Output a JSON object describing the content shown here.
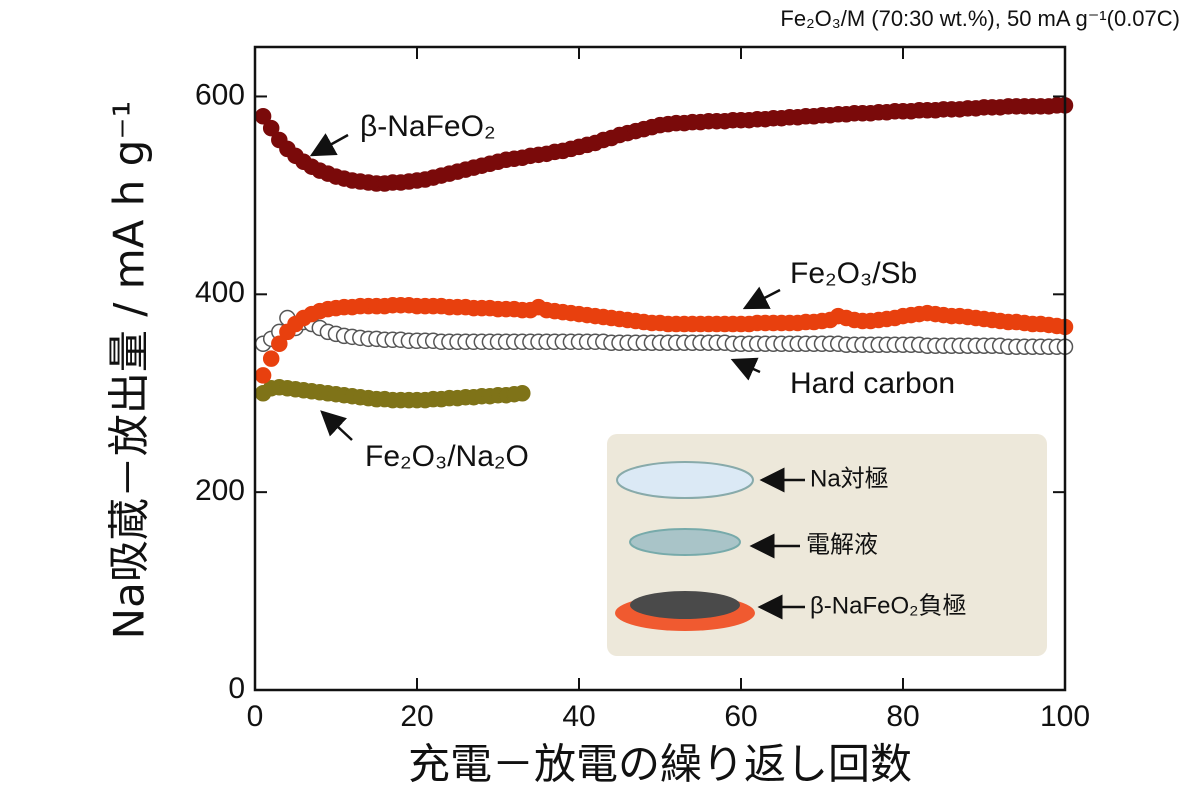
{
  "chart_data": {
    "type": "scatter",
    "note": "Fe₂O₃/M (70:30 wt.%), 50 mA g⁻¹(0.07C)",
    "x_label": "充電－放電の繰り返し回数",
    "y_label": "Na吸蔵－放出量 / mA h g⁻¹",
    "xlim": [
      0,
      100
    ],
    "xticks": [
      0,
      20,
      40,
      60,
      80,
      100
    ],
    "ylim": [
      0,
      650
    ],
    "yticks": [
      0,
      200,
      400,
      600
    ],
    "x": [
      1,
      2,
      3,
      4,
      5,
      6,
      7,
      8,
      9,
      10,
      11,
      12,
      13,
      14,
      15,
      16,
      17,
      18,
      19,
      20,
      21,
      22,
      23,
      24,
      25,
      26,
      27,
      28,
      29,
      30,
      31,
      32,
      33,
      34,
      35,
      36,
      37,
      38,
      39,
      40,
      41,
      42,
      43,
      44,
      45,
      46,
      47,
      48,
      49,
      50,
      51,
      52,
      53,
      54,
      55,
      56,
      57,
      58,
      59,
      60,
      61,
      62,
      63,
      64,
      65,
      66,
      67,
      68,
      69,
      70,
      71,
      72,
      73,
      74,
      75,
      76,
      77,
      78,
      79,
      80,
      81,
      82,
      83,
      84,
      85,
      86,
      87,
      88,
      89,
      90,
      91,
      92,
      93,
      94,
      95,
      96,
      97,
      98,
      99,
      100
    ],
    "series": [
      {
        "name": "Hard carbon",
        "color": "#ffffff",
        "stroke": "#555555",
        "values": [
          350,
          355,
          362,
          376,
          366,
          372,
          370,
          366,
          362,
          360,
          358,
          357,
          356,
          355,
          355,
          354,
          354,
          354,
          353,
          353,
          353,
          353,
          352,
          352,
          352,
          352,
          352,
          352,
          352,
          352,
          352,
          352,
          352,
          352,
          352,
          352,
          352,
          352,
          352,
          352,
          352,
          352,
          352,
          351,
          351,
          351,
          351,
          351,
          351,
          351,
          351,
          351,
          351,
          351,
          351,
          351,
          351,
          351,
          350,
          350,
          350,
          350,
          350,
          350,
          350,
          350,
          350,
          350,
          350,
          350,
          350,
          350,
          349,
          349,
          349,
          349,
          349,
          349,
          349,
          349,
          349,
          349,
          348,
          348,
          348,
          348,
          348,
          348,
          348,
          348,
          348,
          348,
          347,
          347,
          347,
          347,
          347,
          347,
          347,
          347
        ]
      },
      {
        "name": "Fe₂O₃/Na₂O",
        "color": "#7f7318",
        "stroke": "#7f7318",
        "values": [
          300,
          305,
          306,
          305,
          304,
          303,
          302,
          301,
          300,
          299,
          298,
          297,
          296,
          295,
          294,
          294,
          293,
          293,
          293,
          293,
          293,
          294,
          294,
          295,
          295,
          296,
          296,
          297,
          297,
          298,
          298,
          299,
          300,
          null,
          null,
          null,
          null,
          null,
          null,
          null,
          null,
          null,
          null,
          null,
          null,
          null,
          null,
          null,
          null,
          null,
          null,
          null,
          null,
          null,
          null,
          null,
          null,
          null,
          null,
          null,
          null,
          null,
          null,
          null,
          null,
          null,
          null,
          null,
          null,
          null,
          null,
          null,
          null,
          null,
          null,
          null,
          null,
          null,
          null,
          null,
          null,
          null,
          null,
          null,
          null,
          null,
          null,
          null,
          null,
          null,
          null,
          null,
          null,
          null,
          null,
          null,
          null,
          null,
          null,
          null
        ]
      },
      {
        "name": "Fe₂O₃/Sb",
        "color": "#e8400e",
        "stroke": "#e8400e",
        "values": [
          318,
          335,
          350,
          362,
          370,
          376,
          380,
          383,
          385,
          386,
          387,
          387,
          388,
          388,
          388,
          388,
          389,
          389,
          389,
          388,
          388,
          388,
          388,
          387,
          387,
          387,
          386,
          386,
          386,
          385,
          385,
          385,
          384,
          384,
          387,
          384,
          383,
          382,
          381,
          380,
          379,
          378,
          377,
          376,
          375,
          374,
          373,
          372,
          371,
          371,
          370,
          370,
          370,
          370,
          370,
          370,
          370,
          370,
          370,
          370,
          370,
          371,
          371,
          371,
          371,
          371,
          371,
          372,
          372,
          373,
          374,
          378,
          376,
          374,
          373,
          373,
          374,
          375,
          376,
          378,
          379,
          380,
          381,
          380,
          379,
          378,
          378,
          377,
          376,
          375,
          374,
          373,
          372,
          372,
          371,
          370,
          370,
          369,
          368,
          367
        ]
      },
      {
        "name": "β-NaFeO₂",
        "color": "#7a0a0a",
        "stroke": "#7a0a0a",
        "values": [
          580,
          568,
          556,
          547,
          540,
          534,
          529,
          525,
          522,
          519,
          517,
          515,
          514,
          513,
          512,
          512,
          513,
          513,
          514,
          515,
          516,
          518,
          520,
          522,
          524,
          526,
          528,
          530,
          532,
          534,
          536,
          537,
          538,
          540,
          541,
          542,
          544,
          545,
          547,
          549,
          551,
          553,
          556,
          558,
          561,
          563,
          565,
          567,
          569,
          571,
          572,
          573,
          573,
          574,
          574,
          575,
          575,
          575,
          576,
          576,
          576,
          577,
          577,
          578,
          578,
          579,
          579,
          580,
          580,
          581,
          581,
          582,
          582,
          583,
          583,
          583,
          584,
          584,
          585,
          585,
          585,
          586,
          586,
          586,
          587,
          587,
          587,
          588,
          588,
          589,
          589,
          589,
          590,
          590,
          590,
          590,
          590,
          590,
          591,
          591
        ]
      }
    ],
    "inset": {
      "labels": [
        "Na対極",
        "電解液",
        "β-NaFeO₂負極"
      ]
    }
  }
}
